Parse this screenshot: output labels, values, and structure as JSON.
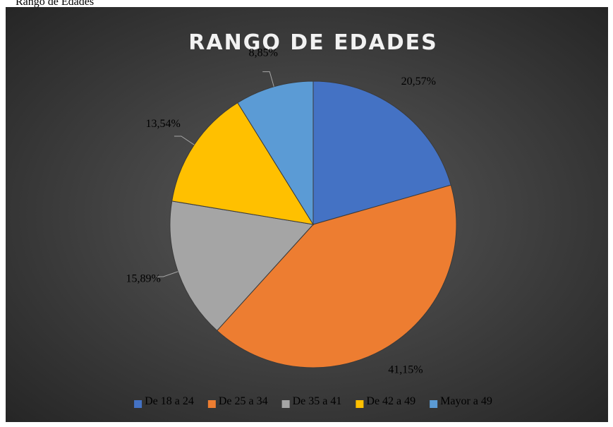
{
  "chart_data": {
    "type": "pie",
    "caption": "Rango de Edades",
    "title": "RANGO DE EDADES",
    "categories": [
      "De 18 a 24",
      "De 25 a 34",
      "De 35 a 41",
      "De 42 a 49",
      "Mayor a 49"
    ],
    "values": [
      20.57,
      41.15,
      15.89,
      13.54,
      8.85
    ],
    "value_labels": [
      "20,57%",
      "41,15%",
      "15,89%",
      "13,54%",
      "8,85%"
    ],
    "colors": [
      "#4472c4",
      "#ed7d31",
      "#a5a5a5",
      "#ffc000",
      "#5b9bd5"
    ],
    "legend": "bottom"
  }
}
